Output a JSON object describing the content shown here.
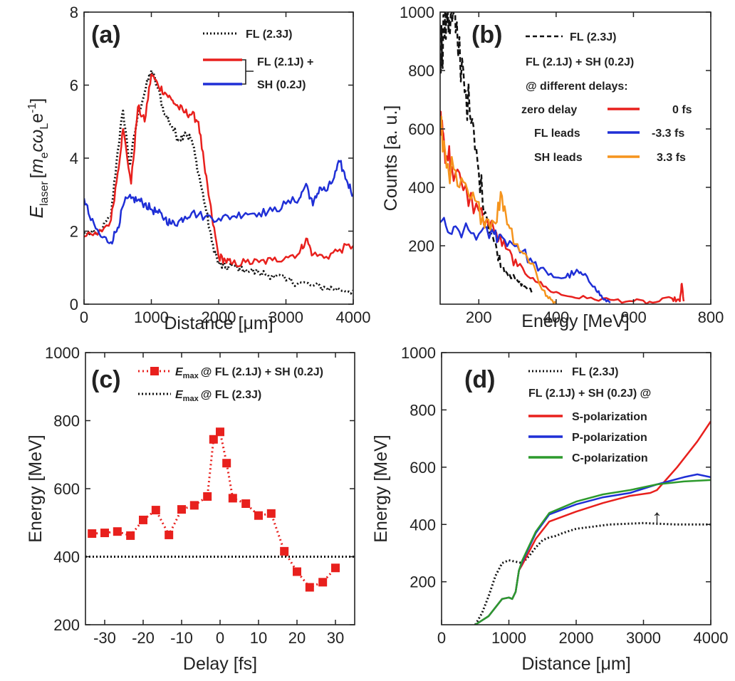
{
  "chart_data": [
    {
      "panel": "(a)",
      "type": "line",
      "xlabel": "Distance [μm]",
      "ylabel": "E_laser [m_e c ω_L e^-1]",
      "ylabel_parts": {
        "E": "E",
        "sub": "laser",
        "open": "[",
        "m": "m",
        "e": "e",
        "c": "c",
        "w": "ω",
        "L": "L",
        "tail": "e",
        "sup": "-1",
        "close": "]"
      },
      "xlim": [
        0,
        4000
      ],
      "ylim": [
        0,
        8
      ],
      "xticks": [
        0,
        1000,
        2000,
        3000,
        4000
      ],
      "yticks": [
        0,
        2,
        4,
        6,
        8
      ],
      "legend": {
        "fl": "FL (2.3J)",
        "fl_part": "FL (2.1J) +",
        "sh_part": "SH (0.2J)"
      },
      "series": [
        {
          "name": "FL (2.3J)",
          "color": "#111111",
          "style": "dotted",
          "x": [
            0,
            200,
            400,
            500,
            580,
            680,
            800,
            900,
            1000,
            1100,
            1200,
            1300,
            1400,
            1500,
            1600,
            1700,
            1800,
            1900,
            2000,
            2100,
            2200,
            2400,
            2600,
            2800,
            3000,
            3200,
            3400,
            3600,
            3800,
            4000
          ],
          "y": [
            1.95,
            1.9,
            2.4,
            4.2,
            5.3,
            3.8,
            5.2,
            5.8,
            6.4,
            5.9,
            5.2,
            4.9,
            4.5,
            4.7,
            4.5,
            3.6,
            2.7,
            1.7,
            1.1,
            1.0,
            1.05,
            0.95,
            0.85,
            0.8,
            0.65,
            0.6,
            0.5,
            0.45,
            0.4,
            0.38
          ]
        },
        {
          "name": "FL (2.1J) + SH (0.2J)",
          "color": "#e8201d",
          "style": "solid",
          "x": [
            0,
            200,
            400,
            500,
            580,
            700,
            800,
            900,
            1000,
            1100,
            1200,
            1300,
            1400,
            1500,
            1600,
            1700,
            1800,
            1900,
            2000,
            2100,
            2200,
            2400,
            2600,
            2800,
            3000,
            3200,
            3300,
            3400,
            3600,
            3800,
            4000
          ],
          "y": [
            1.85,
            1.9,
            2.3,
            3.6,
            4.8,
            3.3,
            5.4,
            5.0,
            6.3,
            6.0,
            5.8,
            5.6,
            5.4,
            5.25,
            5.2,
            5.0,
            3.6,
            2.4,
            1.3,
            1.2,
            1.1,
            1.15,
            1.15,
            1.2,
            1.3,
            1.4,
            1.8,
            1.35,
            1.3,
            1.5,
            1.6
          ]
        },
        {
          "name": "SH (0.2J)",
          "color": "#1f2fd6",
          "style": "solid",
          "x": [
            0,
            100,
            250,
            400,
            500,
            600,
            700,
            800,
            900,
            1000,
            1100,
            1200,
            1300,
            1400,
            1500,
            1600,
            1800,
            2000,
            2200,
            2400,
            2600,
            2800,
            3000,
            3200,
            3300,
            3400,
            3500,
            3600,
            3700,
            3800,
            3900,
            4000
          ],
          "y": [
            2.9,
            2.3,
            1.85,
            1.7,
            2.1,
            2.8,
            2.9,
            2.85,
            2.75,
            2.6,
            2.5,
            2.35,
            2.2,
            2.25,
            2.4,
            2.5,
            2.4,
            2.35,
            2.4,
            2.5,
            2.5,
            2.55,
            2.75,
            2.9,
            3.3,
            2.7,
            3.2,
            3.1,
            3.4,
            3.9,
            3.4,
            3.0
          ]
        }
      ]
    },
    {
      "panel": "(b)",
      "type": "line",
      "xlabel": "Energy [MeV]",
      "ylabel": "Counts [a. u.]",
      "xlim": [
        100,
        800
      ],
      "ylim": [
        0,
        1000
      ],
      "xticks": [
        200,
        400,
        600,
        800
      ],
      "yticks": [
        200,
        400,
        600,
        800,
        1000
      ],
      "legend": {
        "fl": "FL (2.3J)",
        "combo": "FL (2.1J) + SH (0.2J)",
        "delays": "@ different delays:",
        "rows": [
          {
            "label": "zero delay",
            "value": "0 fs"
          },
          {
            "label": "FL leads",
            "value": "-3.3 fs"
          },
          {
            "label": "SH leads",
            "value": "3.3 fs"
          }
        ]
      },
      "series": [
        {
          "name": "FL (2.3J)",
          "color": "#111111",
          "style": "dashed",
          "x": [
            100,
            110,
            120,
            130,
            140,
            160,
            180,
            200,
            220,
            240,
            260,
            280,
            300,
            320,
            340
          ],
          "y": [
            850,
            950,
            1000,
            980,
            930,
            800,
            620,
            450,
            300,
            210,
            130,
            100,
            80,
            60,
            40
          ]
        },
        {
          "name": "0 fs",
          "color": "#e8201d",
          "style": "solid",
          "x": [
            100,
            110,
            130,
            160,
            200,
            240,
            270,
            300,
            340,
            380,
            420,
            480,
            540,
            600,
            650,
            700,
            720,
            725,
            730
          ],
          "y": [
            660,
            560,
            470,
            390,
            320,
            250,
            190,
            130,
            90,
            50,
            30,
            20,
            15,
            10,
            5,
            20,
            10,
            70,
            10
          ]
        },
        {
          "name": "-3.3 fs",
          "color": "#1f2fd6",
          "style": "solid",
          "x": [
            100,
            130,
            160,
            200,
            240,
            260,
            300,
            340,
            380,
            420,
            450,
            470,
            500,
            520,
            540
          ],
          "y": [
            280,
            240,
            250,
            240,
            240,
            230,
            200,
            140,
            100,
            90,
            110,
            100,
            60,
            20,
            5
          ]
        },
        {
          "name": "3.3 fs",
          "color": "#f5941d",
          "style": "solid",
          "x": [
            100,
            120,
            150,
            180,
            210,
            240,
            260,
            280,
            310,
            340,
            360,
            380,
            400
          ],
          "y": [
            600,
            480,
            400,
            360,
            300,
            280,
            370,
            260,
            180,
            140,
            60,
            20,
            5
          ]
        }
      ]
    },
    {
      "panel": "(c)",
      "type": "scatter",
      "xlabel": "Delay [fs]",
      "ylabel": "Energy [MeV]",
      "xlim": [
        -35,
        35
      ],
      "ylim": [
        200,
        1000
      ],
      "xticks": [
        -30,
        -20,
        -10,
        0,
        10,
        20,
        30
      ],
      "yticks": [
        200,
        400,
        600,
        800,
        1000
      ],
      "legend": {
        "emax": "E",
        "sub": "max",
        "combo_suffix": "@ FL (2.1J) + SH (0.2J)",
        "fl_suffix": "@ FL (2.3J)"
      },
      "series": [
        {
          "name": "FL (2.1J) + SH (0.2J)",
          "color": "#e8201d",
          "x": [
            -33.3,
            -30,
            -26.7,
            -23.3,
            -20,
            -16.7,
            -13.3,
            -10,
            -6.7,
            -3.3,
            -1.7,
            0,
            1.7,
            3.3,
            6.7,
            10,
            13.3,
            16.7,
            20,
            23.3,
            26.7,
            30
          ],
          "y": [
            468,
            470,
            474,
            462,
            508,
            537,
            464,
            539,
            551,
            577,
            745,
            767,
            675,
            572,
            556,
            521,
            527,
            416,
            356,
            310,
            325,
            367
          ]
        },
        {
          "name": "FL (2.3J)",
          "color": "#111111",
          "style": "dotted",
          "x": [
            -35,
            35
          ],
          "y": [
            400,
            400
          ]
        }
      ]
    },
    {
      "panel": "(d)",
      "type": "line",
      "xlabel": "Distance [μm]",
      "ylabel": "Energy [MeV]",
      "xlim": [
        0,
        4000
      ],
      "ylim": [
        50,
        1000
      ],
      "xticks": [
        0,
        1000,
        2000,
        3000,
        4000
      ],
      "yticks": [
        200,
        400,
        600,
        800,
        1000
      ],
      "legend": {
        "fl": "FL (2.3J)",
        "combo": "FL (2.1J) + SH (0.2J) @",
        "s": "S-polarization",
        "p": "P-polarization",
        "c": "C-polarization"
      },
      "annotation": {
        "x": 3200,
        "y": 430,
        "symbol": "↑"
      },
      "series": [
        {
          "name": "FL (2.3J)",
          "color": "#111111",
          "style": "dotted",
          "x": [
            500,
            600,
            700,
            800,
            900,
            1000,
            1100,
            1200,
            1300,
            1400,
            1500,
            1600,
            1700,
            1800,
            2000,
            2500,
            3000,
            3500,
            4000
          ],
          "y": [
            50,
            90,
            150,
            220,
            265,
            275,
            270,
            265,
            290,
            320,
            345,
            355,
            360,
            370,
            385,
            400,
            405,
            400,
            400
          ]
        },
        {
          "name": "S-polarization",
          "color": "#e8201d",
          "style": "solid",
          "x": [
            500,
            700,
            900,
            1000,
            1050,
            1100,
            1150,
            1200,
            1400,
            1600,
            2000,
            2400,
            2800,
            3100,
            3200,
            3500,
            3800,
            4000
          ],
          "y": [
            50,
            80,
            140,
            145,
            140,
            165,
            240,
            260,
            350,
            410,
            445,
            475,
            500,
            510,
            520,
            600,
            690,
            760
          ]
        },
        {
          "name": "P-polarization",
          "color": "#1f2fd6",
          "style": "solid",
          "x": [
            500,
            700,
            900,
            1000,
            1050,
            1100,
            1150,
            1200,
            1400,
            1600,
            2000,
            2400,
            2800,
            3200,
            3600,
            3800,
            4000
          ],
          "y": [
            50,
            80,
            140,
            145,
            140,
            165,
            240,
            270,
            370,
            435,
            470,
            495,
            510,
            540,
            565,
            575,
            565
          ]
        },
        {
          "name": "C-polarization",
          "color": "#2d9a2d",
          "style": "solid",
          "x": [
            500,
            700,
            900,
            1000,
            1050,
            1100,
            1150,
            1200,
            1400,
            1600,
            2000,
            2400,
            2800,
            3200,
            3600,
            4000
          ],
          "y": [
            50,
            80,
            140,
            145,
            140,
            165,
            240,
            275,
            375,
            440,
            480,
            505,
            520,
            540,
            550,
            555
          ]
        }
      ]
    }
  ]
}
